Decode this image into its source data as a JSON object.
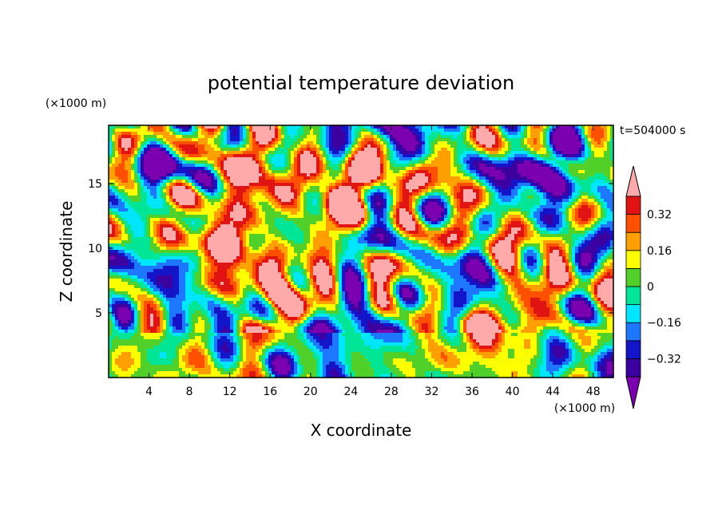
{
  "chart_data": {
    "type": "heatmap",
    "title": "potential temperature deviation",
    "xlabel": "X coordinate",
    "ylabel": "Z coordinate",
    "x_unit": "(×1000 m)",
    "y_unit": "(×1000 m)",
    "time_label": "t=504000 s",
    "xlim": [
      0,
      50
    ],
    "ylim": [
      0,
      19.5
    ],
    "x_ticks": [
      4,
      8,
      12,
      16,
      20,
      24,
      28,
      32,
      36,
      40,
      44,
      48
    ],
    "y_ticks": [
      5,
      10,
      15
    ],
    "colorbar": {
      "levels": [
        -0.4,
        -0.32,
        -0.24,
        -0.16,
        -0.08,
        0,
        0.08,
        0.16,
        0.24,
        0.32,
        0.4
      ],
      "tick_values": [
        -0.32,
        -0.16,
        0,
        0.16,
        0.32
      ],
      "tick_labels": [
        "−0.32",
        "−0.16",
        "0",
        "0.16",
        "0.32"
      ],
      "colors": [
        "#7a00b0",
        "#3c00a0",
        "#1414c8",
        "#1e78ff",
        "#00e6ff",
        "#00e696",
        "#50d028",
        "#ffff00",
        "#ffa000",
        "#ff5000",
        "#e11414",
        "#ffaaaa"
      ],
      "extend": "both"
    },
    "grid": false
  }
}
